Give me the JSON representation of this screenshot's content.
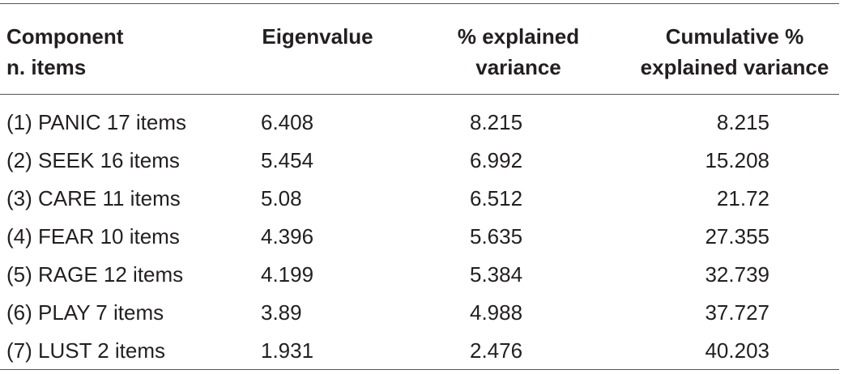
{
  "table": {
    "headers": [
      {
        "lines": [
          "Component",
          "n. items"
        ]
      },
      {
        "lines": [
          "Eigenvalue"
        ]
      },
      {
        "lines": [
          "% explained",
          "variance"
        ]
      },
      {
        "lines": [
          "Cumulative %",
          "explained variance"
        ]
      }
    ],
    "rows": [
      {
        "component": "(1) PANIC 17 items",
        "eigenvalue": "6.408",
        "explained": "8.215",
        "cumulative": "8.215"
      },
      {
        "component": "(2) SEEK 16 items",
        "eigenvalue": "5.454",
        "explained": "6.992",
        "cumulative": "15.208"
      },
      {
        "component": "(3) CARE 11 items",
        "eigenvalue": "5.08",
        "explained": "6.512",
        "cumulative": "21.72"
      },
      {
        "component": "(4) FEAR 10 items",
        "eigenvalue": "4.396",
        "explained": "5.635",
        "cumulative": "27.355"
      },
      {
        "component": "(5) RAGE 12 items",
        "eigenvalue": "4.199",
        "explained": "5.384",
        "cumulative": "32.739"
      },
      {
        "component": "(6) PLAY 7 items",
        "eigenvalue": "3.89",
        "explained": "4.988",
        "cumulative": "37.727"
      },
      {
        "component": "(7) LUST 2 items",
        "eigenvalue": "1.931",
        "explained": "2.476",
        "cumulative": "40.203"
      }
    ]
  }
}
